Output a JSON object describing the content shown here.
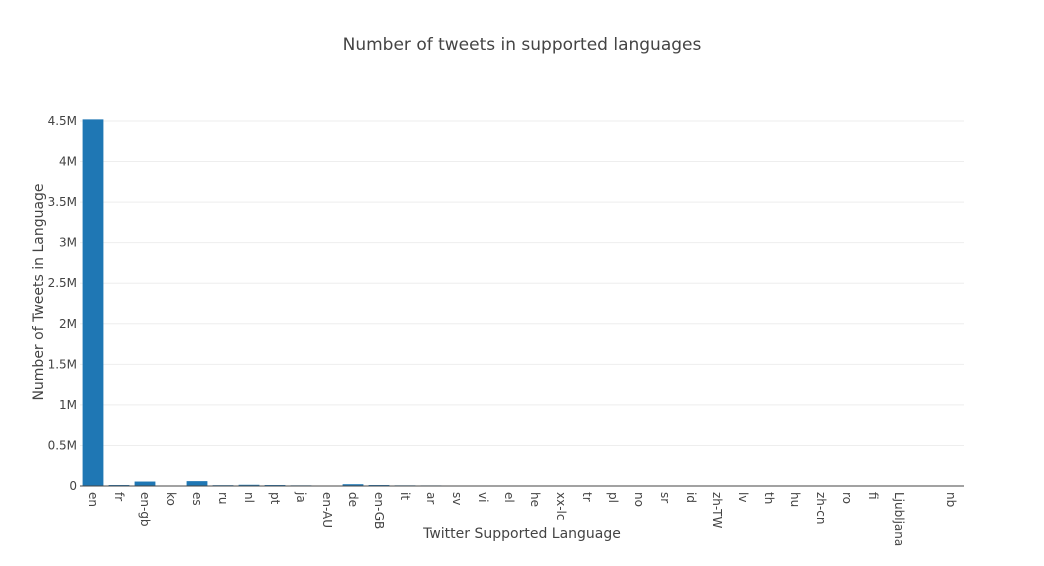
{
  "chart_data": {
    "type": "bar",
    "title": "Number of tweets in supported languages",
    "xlabel": "Twitter Supported Language",
    "ylabel": "Number of Tweets in Language",
    "ylim": [
      0,
      4.5
    ],
    "y_unit_note": "millions",
    "yticks": [
      {
        "value": 0,
        "label": "0"
      },
      {
        "value": 0.5,
        "label": "0.5M"
      },
      {
        "value": 1,
        "label": "1M"
      },
      {
        "value": 1.5,
        "label": "1.5M"
      },
      {
        "value": 2,
        "label": "2M"
      },
      {
        "value": 2.5,
        "label": "2.5M"
      },
      {
        "value": 3,
        "label": "3M"
      },
      {
        "value": 3.5,
        "label": "3.5M"
      },
      {
        "value": 4,
        "label": "4M"
      },
      {
        "value": 4.5,
        "label": "4.5M"
      }
    ],
    "categories": [
      "en",
      "fr",
      "en-gb",
      "ko",
      "es",
      "ru",
      "nl",
      "pt",
      "ja",
      "en-AU",
      "de",
      "en-GB",
      "it",
      "ar",
      "sv",
      "vi",
      "el",
      "he",
      "xx-lc",
      "tr",
      "pl",
      "no",
      "sr",
      "id",
      "zh-TW",
      "lv",
      "th",
      "hu",
      "zh-cn",
      "ro",
      "fi",
      "Ljubljana",
      "",
      "nb"
    ],
    "values": [
      4.52,
      0.012,
      0.055,
      0.003,
      0.06,
      0.01,
      0.015,
      0.012,
      0.008,
      0.005,
      0.022,
      0.012,
      0.008,
      0.007,
      0.002,
      0.002,
      0.002,
      0.001,
      0.001,
      0.004,
      0.004,
      0.001,
      0.001,
      0.001,
      0.001,
      0.001,
      0.001,
      0.001,
      0.001,
      0.001,
      0.001,
      0.0005,
      0,
      0.0005
    ],
    "grid": true,
    "color": "#1f77b4"
  }
}
